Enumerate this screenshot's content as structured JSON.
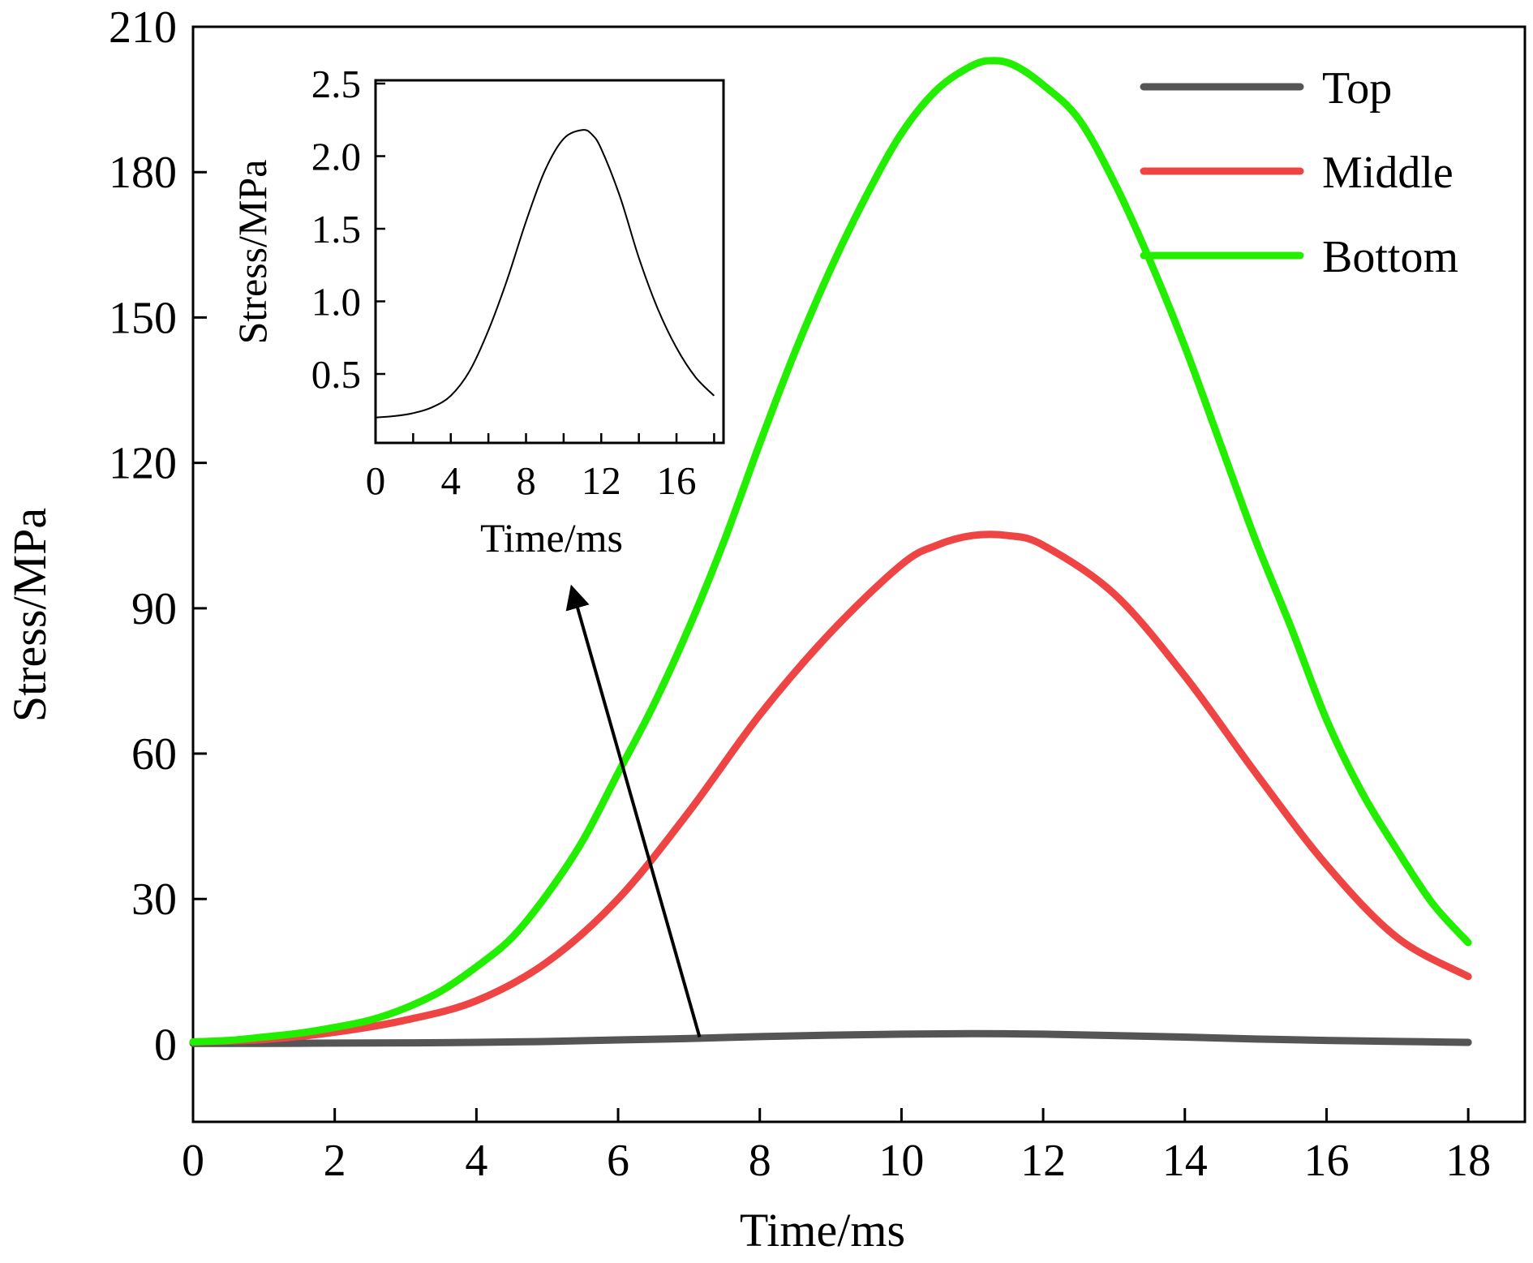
{
  "chart_data": [
    {
      "type": "line",
      "xlabel": "Time/ms",
      "ylabel": "Stress/MPa",
      "xlim": [
        0,
        18.8
      ],
      "ylim": [
        -16,
        210
      ],
      "xticks": [
        0,
        2,
        4,
        6,
        8,
        10,
        12,
        14,
        16,
        18
      ],
      "yticks": [
        0,
        30,
        60,
        90,
        120,
        150,
        180,
        210
      ],
      "grid": false,
      "legend_position": "top-right",
      "series": [
        {
          "name": "Top",
          "color": "#555555",
          "x": [
            0,
            1,
            2,
            3,
            4,
            5,
            6,
            7,
            8,
            9,
            10,
            11,
            12,
            13,
            14,
            15,
            16,
            17,
            18
          ],
          "y": [
            0.2,
            0.2,
            0.25,
            0.3,
            0.4,
            0.6,
            0.9,
            1.2,
            1.6,
            1.9,
            2.1,
            2.2,
            2.1,
            1.8,
            1.5,
            1.1,
            0.8,
            0.6,
            0.4
          ]
        },
        {
          "name": "Middle",
          "color": "#ee4444",
          "x": [
            0,
            1,
            2,
            3,
            4,
            5,
            6,
            7,
            8,
            9,
            10,
            10.5,
            11,
            11.5,
            12,
            13,
            14,
            15,
            16,
            17,
            18
          ],
          "y": [
            0.5,
            1,
            2.5,
            5,
            9,
            17,
            30,
            48,
            68,
            85,
            99,
            103,
            105,
            105,
            103,
            93,
            76,
            56,
            37,
            22,
            14
          ]
        },
        {
          "name": "Bottom",
          "color": "#22ee00",
          "x": [
            0,
            0.5,
            1,
            1.5,
            2,
            2.5,
            3,
            3.5,
            4,
            4.5,
            5,
            5.5,
            6,
            6.5,
            7,
            7.5,
            8,
            8.5,
            9,
            9.5,
            10,
            10.5,
            11,
            11.3,
            11.6,
            12,
            12.5,
            13,
            13.5,
            14,
            14.5,
            15,
            15.5,
            16,
            16.5,
            17,
            17.5,
            18
          ],
          "y": [
            0.5,
            0.8,
            1.5,
            2.3,
            3.5,
            5,
            7.5,
            11,
            16,
            22,
            31,
            42,
            56,
            70,
            86,
            104,
            124,
            143,
            160,
            175,
            188,
            197,
            202,
            203,
            202,
            198,
            191,
            178,
            162,
            144,
            124,
            104,
            86,
            67,
            52,
            40,
            29,
            21
          ]
        }
      ]
    },
    {
      "type": "line",
      "xlabel": "Time/ms",
      "ylabel": "Stress/MPa",
      "xlim": [
        0,
        18.5
      ],
      "ylim": [
        0,
        2.5
      ],
      "xticks": [
        0,
        4,
        8,
        12,
        16
      ],
      "yticks": [
        0.5,
        1.0,
        1.5,
        2.0,
        2.5
      ],
      "tick_labels_y": [
        "0.5",
        "1.0",
        "1.5",
        "2.0",
        "2.5"
      ],
      "grid": false,
      "series": [
        {
          "color": "#000000",
          "x": [
            0,
            1,
            2,
            3,
            4,
            5,
            6,
            7,
            8,
            9,
            10,
            11,
            11.5,
            12,
            13,
            14,
            15,
            16,
            17,
            18
          ],
          "y": [
            0.2,
            0.21,
            0.23,
            0.27,
            0.35,
            0.52,
            0.8,
            1.15,
            1.55,
            1.9,
            2.12,
            2.18,
            2.15,
            2.05,
            1.72,
            1.3,
            0.95,
            0.68,
            0.48,
            0.35
          ]
        }
      ]
    }
  ]
}
